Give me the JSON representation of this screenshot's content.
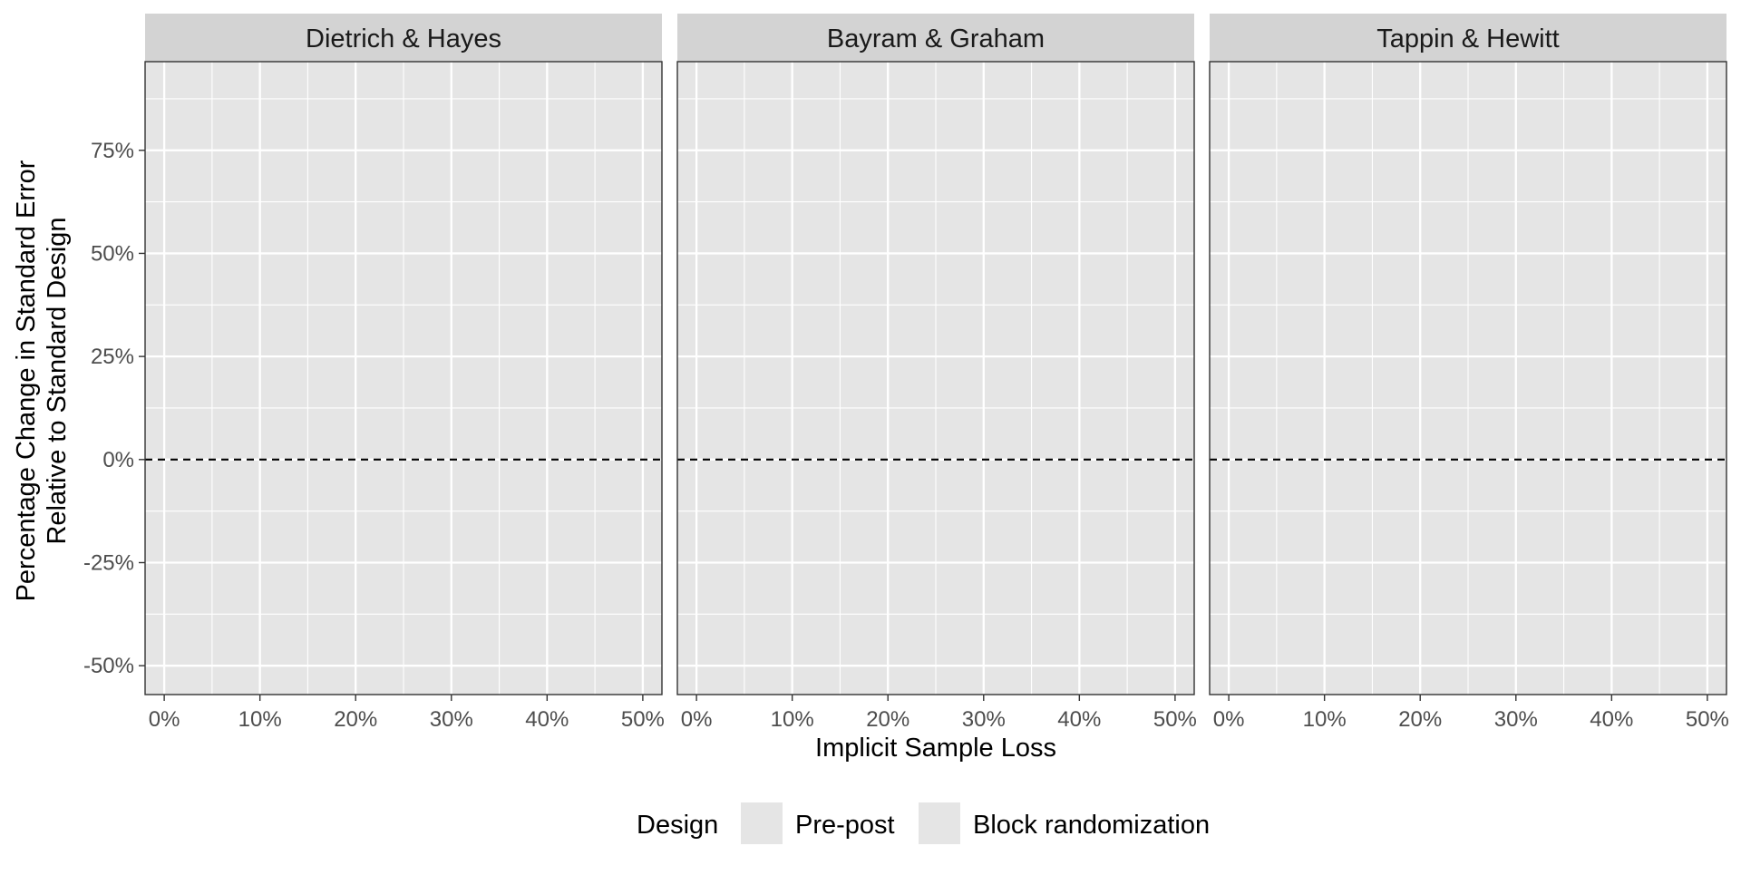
{
  "chart_data": {
    "type": "line",
    "facets": [
      "Dietrich & Hayes",
      "Bayram & Graham",
      "Tappin & Hewitt"
    ],
    "xlabel": "Implicit Sample Loss",
    "ylabel_lines": [
      "Percentage Change in Standard Error",
      "Relative to Standard Design"
    ],
    "x_ticks": [
      0,
      0.1,
      0.2,
      0.3,
      0.4,
      0.5
    ],
    "x_tick_labels": [
      "0%",
      "10%",
      "20%",
      "30%",
      "40%",
      "50%"
    ],
    "xlim": [
      -0.02,
      0.52
    ],
    "y_ticks": [
      -0.5,
      -0.25,
      0,
      0.25,
      0.5,
      0.75
    ],
    "y_tick_labels": [
      "-50%",
      "-25%",
      "0%",
      "25%",
      "50%",
      "75%"
    ],
    "ylim": [
      -0.57,
      0.965
    ],
    "reference_line": {
      "y": 0,
      "style": "dashed"
    },
    "grid": true,
    "series": [],
    "legend": {
      "title": "Design",
      "position": "bottom",
      "entries": [
        "Pre-post",
        "Block randomization"
      ]
    },
    "colors": {
      "panel_background": "#E5E5E5",
      "strip_background": "#D3D3D3",
      "gridline": "#FFFFFF",
      "reference_line": "#000000",
      "legend_key": "#E5E5E5"
    }
  }
}
